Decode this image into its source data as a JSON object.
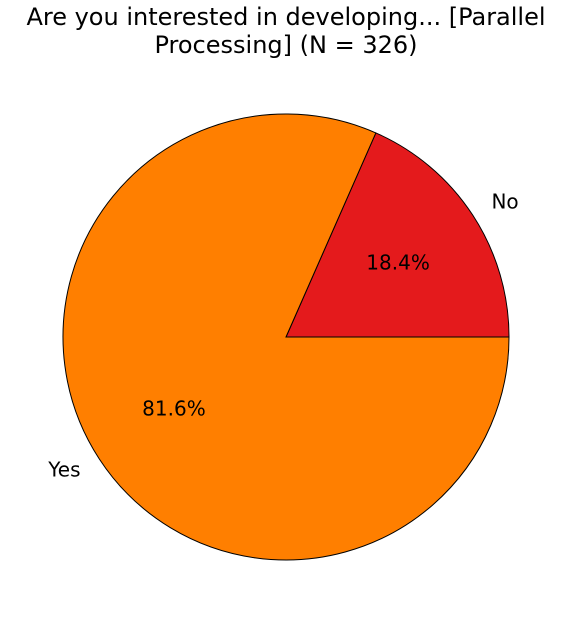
{
  "chart_data": {
    "type": "pie",
    "title": [
      "Are you interested in developing... [Parallel",
      "Processing] (N = 326)"
    ],
    "categories": [
      "No",
      "Yes"
    ],
    "values": [
      18.4,
      81.6
    ],
    "value_labels": [
      "18.4%",
      "81.6%"
    ],
    "colors": [
      "#e41a1c",
      "#ff7f00"
    ]
  }
}
